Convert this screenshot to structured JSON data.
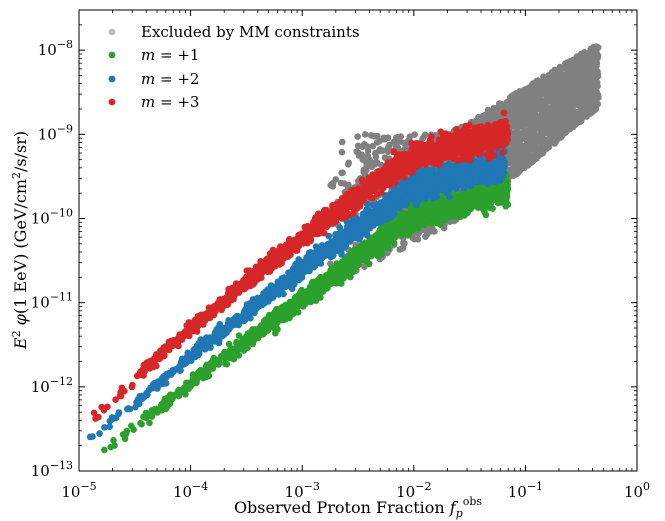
{
  "chart_data": {
    "type": "scatter",
    "title": "",
    "xlabel": "Observed Proton Fraction f_p^obs",
    "ylabel": "E^2 φ(1 EeV) (GeV/cm^2/s/sr)",
    "xscale": "log",
    "yscale": "log",
    "xlim": [
      1e-05,
      1
    ],
    "ylim": [
      1e-13,
      3e-08
    ],
    "grid": false,
    "legend_position": "top-left",
    "x_ticks": [
      {
        "value": 1e-05,
        "base": "10",
        "exp": "−5"
      },
      {
        "value": 0.0001,
        "base": "10",
        "exp": "−4"
      },
      {
        "value": 0.001,
        "base": "10",
        "exp": "−3"
      },
      {
        "value": 0.01,
        "base": "10",
        "exp": "−2"
      },
      {
        "value": 0.1,
        "base": "10",
        "exp": "−1"
      },
      {
        "value": 1,
        "base": "10",
        "exp": "0"
      }
    ],
    "y_ticks": [
      {
        "value": 1e-13,
        "base": "10",
        "exp": "−13"
      },
      {
        "value": 1e-12,
        "base": "10",
        "exp": "−12"
      },
      {
        "value": 1e-11,
        "base": "10",
        "exp": "−11"
      },
      {
        "value": 1e-10,
        "base": "10",
        "exp": "−10"
      },
      {
        "value": 1e-09,
        "base": "10",
        "exp": "−9"
      },
      {
        "value": 1e-08,
        "base": "10",
        "exp": "−8"
      }
    ],
    "series": [
      {
        "name": "Excluded by MM constraints",
        "color": "#808080",
        "legend_color": "#bbbbbb",
        "trend": [
          [
            0.0015,
            3e-11
          ],
          [
            0.01,
            2.2e-10
          ],
          [
            0.08,
            1.5e-09
          ],
          [
            0.3,
            4e-09
          ],
          [
            0.45,
            6e-09
          ]
        ],
        "x_range": [
          0.0015,
          0.45
        ],
        "band_upper": [
          [
            0.02,
            1e-09
          ],
          [
            0.08,
            3e-09
          ],
          [
            0.45,
            1.2e-08
          ]
        ],
        "band_lower": [
          [
            0.0015,
            1.5e-11
          ],
          [
            0.02,
            8e-11
          ],
          [
            0.1,
            4e-10
          ],
          [
            0.45,
            2.1e-09
          ]
        ]
      },
      {
        "name": "m = +1",
        "color": "#2ca02c",
        "trend": [
          [
            1.4e-05,
            1.5e-13
          ],
          [
            0.0001,
            1.1e-12
          ],
          [
            0.001,
            1.1e-11
          ],
          [
            0.01,
            1.1e-10
          ],
          [
            0.07,
            2.3e-10
          ]
        ],
        "x_range": [
          1.4e-05,
          0.07
        ]
      },
      {
        "name": "m = +2",
        "color": "#1f77b4",
        "trend": [
          [
            1.2e-05,
            2.3e-13
          ],
          [
            0.0001,
            2.3e-12
          ],
          [
            0.001,
            2.5e-11
          ],
          [
            0.01,
            2.4e-10
          ],
          [
            0.065,
            4.5e-10
          ]
        ],
        "x_range": [
          1.2e-05,
          0.065
        ]
      },
      {
        "name": "m = +3",
        "color": "#d62728",
        "trend": [
          [
            1e-05,
            3e-13
          ],
          [
            0.0001,
            5e-12
          ],
          [
            0.001,
            6e-11
          ],
          [
            0.01,
            5.5e-10
          ],
          [
            0.07,
            1.05e-09
          ]
        ],
        "x_range": [
          1e-05,
          0.07
        ]
      }
    ]
  }
}
